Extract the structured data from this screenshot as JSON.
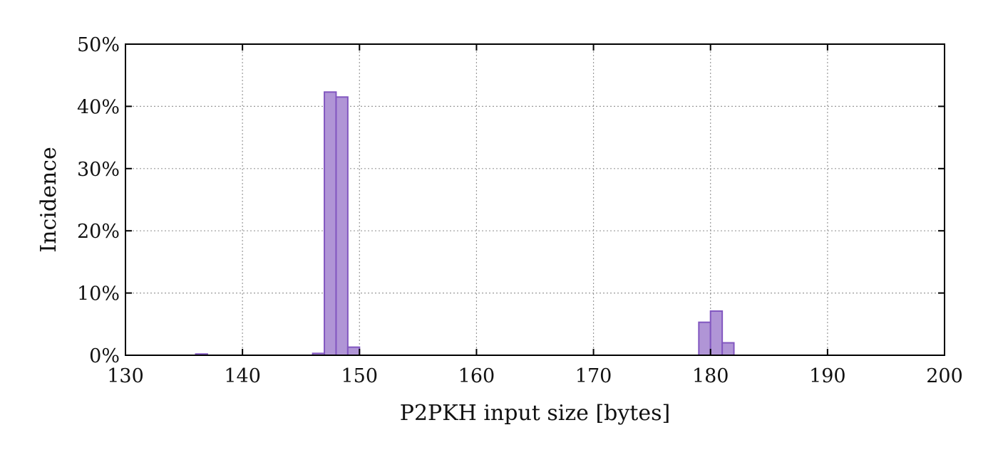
{
  "chart_data": {
    "type": "bar",
    "xlabel": "P2PKH input size [bytes]",
    "ylabel": "Incidence",
    "xlim": [
      130,
      200
    ],
    "ylim": [
      0,
      50
    ],
    "grid": true,
    "bar_width": 1,
    "x_ticks": [
      130,
      140,
      150,
      160,
      170,
      180,
      190,
      200
    ],
    "x_tick_labels": [
      "130",
      "140",
      "150",
      "160",
      "170",
      "180",
      "190",
      "200"
    ],
    "y_ticks": [
      0,
      10,
      20,
      30,
      40,
      50
    ],
    "y_tick_labels": [
      "0%",
      "10%",
      "20%",
      "30%",
      "40%",
      "50%"
    ],
    "bars": [
      {
        "x": 136,
        "value": 0.2
      },
      {
        "x": 146,
        "value": 0.3
      },
      {
        "x": 147,
        "value": 42.3
      },
      {
        "x": 148,
        "value": 41.5
      },
      {
        "x": 149,
        "value": 1.3
      },
      {
        "x": 179,
        "value": 5.3
      },
      {
        "x": 180,
        "value": 7.1
      },
      {
        "x": 181,
        "value": 2.0
      }
    ],
    "colors": {
      "bar_fill": "#b095d6",
      "bar_stroke": "#8257c0"
    }
  }
}
